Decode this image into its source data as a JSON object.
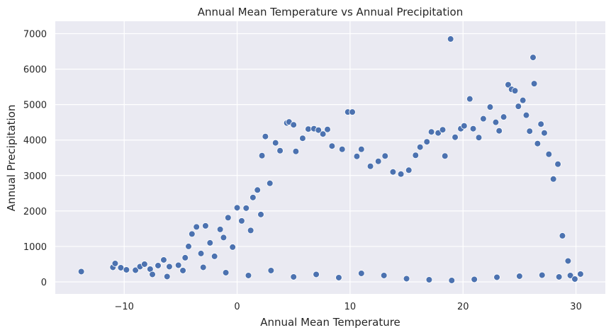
{
  "chart_data": {
    "type": "scatter",
    "title": "Annual Mean Temperature vs Annual Precipitation",
    "xlabel": "Annual Mean Temperature",
    "ylabel": "Annual Precipitation",
    "xlim": [
      -16.1,
      32.6
    ],
    "ylim": [
      -340,
      7350
    ],
    "xticks": [
      -10,
      0,
      10,
      20,
      30
    ],
    "yticks": [
      0,
      1000,
      2000,
      3000,
      4000,
      5000,
      6000,
      7000
    ],
    "grid": true,
    "colors": {
      "background": "#eaeaf2",
      "grid": "#ffffff",
      "marker": "#4c72b0",
      "marker_edge": "#ffffff",
      "text": "#262626"
    },
    "points": [
      [
        -13.8,
        290
      ],
      [
        -11.0,
        410
      ],
      [
        -10.8,
        520
      ],
      [
        -10.3,
        400
      ],
      [
        -9.8,
        340
      ],
      [
        -9.0,
        330
      ],
      [
        -8.6,
        430
      ],
      [
        -8.2,
        500
      ],
      [
        -7.7,
        360
      ],
      [
        -7.0,
        460
      ],
      [
        -6.5,
        620
      ],
      [
        -6.0,
        430
      ],
      [
        -5.2,
        470
      ],
      [
        -4.6,
        680
      ],
      [
        -4.3,
        1000
      ],
      [
        -4.0,
        1350
      ],
      [
        -3.6,
        1550
      ],
      [
        -3.2,
        800
      ],
      [
        -2.8,
        1580
      ],
      [
        -2.4,
        1100
      ],
      [
        -2.0,
        720
      ],
      [
        -1.5,
        1480
      ],
      [
        -1.2,
        1250
      ],
      [
        -0.8,
        1810
      ],
      [
        -0.4,
        980
      ],
      [
        0.0,
        2090
      ],
      [
        0.4,
        1720
      ],
      [
        0.8,
        2080
      ],
      [
        1.2,
        1450
      ],
      [
        1.4,
        2380
      ],
      [
        1.8,
        2590
      ],
      [
        2.1,
        1900
      ],
      [
        2.2,
        3560
      ],
      [
        2.5,
        4100
      ],
      [
        2.9,
        2780
      ],
      [
        3.4,
        3920
      ],
      [
        3.8,
        3700
      ],
      [
        4.4,
        4480
      ],
      [
        4.6,
        4510
      ],
      [
        5.0,
        4430
      ],
      [
        5.2,
        3680
      ],
      [
        5.8,
        4050
      ],
      [
        6.3,
        4310
      ],
      [
        6.8,
        4320
      ],
      [
        7.2,
        4280
      ],
      [
        7.6,
        4170
      ],
      [
        8.0,
        4300
      ],
      [
        8.4,
        3830
      ],
      [
        9.3,
        3740
      ],
      [
        9.8,
        4790
      ],
      [
        10.2,
        4790
      ],
      [
        10.6,
        3540
      ],
      [
        11.0,
        3740
      ],
      [
        11.8,
        3260
      ],
      [
        12.5,
        3400
      ],
      [
        13.1,
        3550
      ],
      [
        13.8,
        3100
      ],
      [
        14.5,
        3040
      ],
      [
        15.2,
        3150
      ],
      [
        15.8,
        3570
      ],
      [
        16.2,
        3800
      ],
      [
        16.8,
        3950
      ],
      [
        17.2,
        4230
      ],
      [
        17.8,
        4200
      ],
      [
        18.2,
        4290
      ],
      [
        18.4,
        3550
      ],
      [
        18.9,
        6850
      ],
      [
        19.3,
        4080
      ],
      [
        19.8,
        4320
      ],
      [
        20.1,
        4400
      ],
      [
        20.6,
        5160
      ],
      [
        20.9,
        4320
      ],
      [
        21.4,
        4070
      ],
      [
        21.8,
        4600
      ],
      [
        22.4,
        4930
      ],
      [
        22.9,
        4500
      ],
      [
        23.2,
        4260
      ],
      [
        23.6,
        4650
      ],
      [
        24.0,
        5560
      ],
      [
        24.3,
        5430
      ],
      [
        24.6,
        5390
      ],
      [
        24.9,
        4950
      ],
      [
        25.3,
        5120
      ],
      [
        25.6,
        4700
      ],
      [
        25.9,
        4250
      ],
      [
        26.2,
        6330
      ],
      [
        26.3,
        5590
      ],
      [
        26.6,
        3900
      ],
      [
        26.9,
        4450
      ],
      [
        27.2,
        4200
      ],
      [
        27.6,
        3600
      ],
      [
        28.0,
        2900
      ],
      [
        28.4,
        3320
      ],
      [
        28.8,
        1300
      ],
      [
        29.3,
        590
      ],
      [
        29.5,
        180
      ],
      [
        29.9,
        80
      ],
      [
        30.4,
        220
      ],
      [
        -7.5,
        210
      ],
      [
        -6.2,
        150
      ],
      [
        -4.8,
        320
      ],
      [
        -3.0,
        410
      ],
      [
        -1.0,
        260
      ],
      [
        1.0,
        180
      ],
      [
        3.0,
        320
      ],
      [
        5.0,
        140
      ],
      [
        7.0,
        210
      ],
      [
        9.0,
        120
      ],
      [
        11.0,
        240
      ],
      [
        13.0,
        180
      ],
      [
        15.0,
        90
      ],
      [
        17.0,
        60
      ],
      [
        19.0,
        40
      ],
      [
        21.0,
        70
      ],
      [
        23.0,
        130
      ],
      [
        25.0,
        160
      ],
      [
        27.0,
        190
      ],
      [
        28.5,
        140
      ]
    ]
  }
}
